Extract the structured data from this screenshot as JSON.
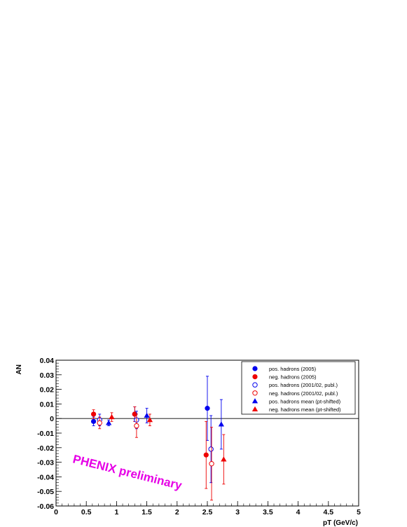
{
  "chart_data": {
    "type": "scatter",
    "xlabel": "pT (GeV/c)",
    "ylabel": "AN",
    "xlim": [
      0,
      5
    ],
    "ylim": [
      -0.06,
      0.04
    ],
    "x_ticks": [
      "0",
      "0.5",
      "1",
      "1.5",
      "2",
      "2.5",
      "3",
      "3.5",
      "4",
      "4.5",
      "5"
    ],
    "y_ticks": [
      "0.04",
      "0.03",
      "0.02",
      "0.01",
      "0",
      "-0.01",
      "-0.02",
      "-0.03",
      "-0.04",
      "-0.05",
      "-0.06"
    ],
    "annotation": "PHENIX preliminary",
    "annotation_color": "#e600e6",
    "legend_position": "top-right",
    "series": [
      {
        "name": "pos. hadrons (2005)",
        "color": "#0000ee",
        "marker": "circle-filled",
        "points": [
          {
            "x": 0.62,
            "y": -0.002,
            "err": 0.003
          },
          {
            "x": 1.3,
            "y": 0.003,
            "err": 0.005
          },
          {
            "x": 2.5,
            "y": 0.007,
            "err": 0.022
          }
        ]
      },
      {
        "name": "neg. hadrons (2005)",
        "color": "#ee0000",
        "marker": "circle-filled",
        "points": [
          {
            "x": 0.62,
            "y": 0.003,
            "err": 0.003
          },
          {
            "x": 1.3,
            "y": 0.003,
            "err": 0.005
          },
          {
            "x": 2.48,
            "y": -0.025,
            "err": 0.023
          }
        ]
      },
      {
        "name": "pos. hadrons (2001/02, publ.)",
        "color": "#0000ee",
        "marker": "circle-open",
        "points": [
          {
            "x": 0.72,
            "y": -0.001,
            "err": 0.004
          },
          {
            "x": 1.33,
            "y": -0.001,
            "err": 0.006
          },
          {
            "x": 2.56,
            "y": -0.021,
            "err": 0.023
          }
        ]
      },
      {
        "name": "neg. hadrons (2001/02, publ.)",
        "color": "#ee0000",
        "marker": "circle-open",
        "points": [
          {
            "x": 0.72,
            "y": -0.003,
            "err": 0.004
          },
          {
            "x": 1.33,
            "y": -0.005,
            "err": 0.008
          },
          {
            "x": 2.57,
            "y": -0.031,
            "err": 0.025
          }
        ]
      },
      {
        "name": "pos. hadrons mean (pt-shifted)",
        "color": "#0000ee",
        "marker": "triangle-filled",
        "points": [
          {
            "x": 0.87,
            "y": -0.003,
            "err": 0.002
          },
          {
            "x": 1.5,
            "y": 0.002,
            "err": 0.005
          },
          {
            "x": 2.73,
            "y": -0.004,
            "err": 0.017
          }
        ]
      },
      {
        "name": "neg. hadrons mean (pt-shifted)",
        "color": "#ee0000",
        "marker": "triangle-filled",
        "points": [
          {
            "x": 0.92,
            "y": 0.001,
            "err": 0.003
          },
          {
            "x": 1.55,
            "y": -0.001,
            "err": 0.004
          },
          {
            "x": 2.77,
            "y": -0.028,
            "err": 0.017
          }
        ]
      }
    ]
  }
}
